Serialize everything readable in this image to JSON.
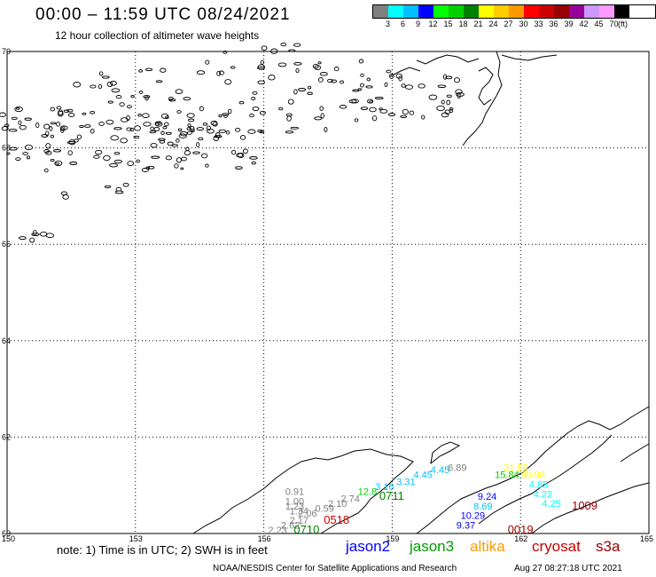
{
  "header": {
    "title": "00:00 – 11:59 UTC 08/24/2021",
    "subtitle": "12 hour collection of altimeter wave heights"
  },
  "legend": {
    "colors": [
      "#808080",
      "#00ffff",
      "#00bfff",
      "#0000ff",
      "#00ff00",
      "#00d000",
      "#008000",
      "#ffff00",
      "#ffcc00",
      "#ff9900",
      "#ff0000",
      "#cc0000",
      "#990000",
      "#990099",
      "#cc99ff",
      "#ff99ff",
      "#000000"
    ],
    "labels": [
      "3",
      "6",
      "9",
      "12",
      "15",
      "18",
      "21",
      "24",
      "27",
      "30",
      "33",
      "36",
      "39",
      "42",
      "45",
      "70",
      "(ft)"
    ]
  },
  "axes": {
    "lat_labels": [
      "70",
      "68",
      "66",
      "64",
      "62",
      "60"
    ],
    "lon_labels": [
      "150",
      "153",
      "156",
      "159",
      "162",
      "165"
    ]
  },
  "chart_data": {
    "type": "scatter",
    "xlabel": "",
    "ylabel": "",
    "xlim": [
      150,
      165
    ],
    "ylim": [
      60,
      70
    ],
    "grid": true,
    "pass_times": [
      {
        "label": "0710",
        "color": "#008000",
        "lon": 156.7,
        "lat": 60.0
      },
      {
        "label": "0518",
        "color": "#cc0000",
        "lon": 157.4,
        "lat": 60.2
      },
      {
        "label": "0711",
        "color": "#008000",
        "lon": 158.7,
        "lat": 60.7
      },
      {
        "label": "0019",
        "color": "#990000",
        "lon": 161.7,
        "lat": 60.0
      },
      {
        "label": "1009",
        "color": "#990000",
        "lon": 163.2,
        "lat": 60.5
      }
    ],
    "observations": [
      {
        "value": "0.91",
        "color": "#808080",
        "lon": 156.5,
        "lat": 60.8
      },
      {
        "value": "1.00",
        "color": "#808080",
        "lon": 156.5,
        "lat": 60.6
      },
      {
        "value": "1.23",
        "color": "#808080",
        "lon": 156.5,
        "lat": 60.5
      },
      {
        "value": "1.34",
        "color": "#808080",
        "lon": 156.6,
        "lat": 60.4
      },
      {
        "value": "2.06",
        "color": "#808080",
        "lon": 156.8,
        "lat": 60.35
      },
      {
        "value": "0.59",
        "color": "#808080",
        "lon": 157.2,
        "lat": 60.45
      },
      {
        "value": "2.10",
        "color": "#808080",
        "lon": 157.5,
        "lat": 60.55
      },
      {
        "value": "2.74",
        "color": "#808080",
        "lon": 157.8,
        "lat": 60.65
      },
      {
        "value": "2.23",
        "color": "#808080",
        "lon": 156.1,
        "lat": 60.0
      },
      {
        "value": "2.62",
        "color": "#808080",
        "lon": 156.4,
        "lat": 60.1
      },
      {
        "value": "2.17",
        "color": "#808080",
        "lon": 156.6,
        "lat": 60.2
      },
      {
        "value": "12.8",
        "color": "#00d000",
        "lon": 158.2,
        "lat": 60.8
      },
      {
        "value": "3.16",
        "color": "#00bfff",
        "lon": 158.6,
        "lat": 60.9
      },
      {
        "value": "3.31",
        "color": "#00bfff",
        "lon": 159.1,
        "lat": 61.0
      },
      {
        "value": "4.45",
        "color": "#00bfff",
        "lon": 159.5,
        "lat": 61.15
      },
      {
        "value": "4.45",
        "color": "#00bfff",
        "lon": 159.9,
        "lat": 61.25
      },
      {
        "value": "6.89",
        "color": "#808080",
        "lon": 160.3,
        "lat": 61.3
      },
      {
        "value": "21.86",
        "color": "#ffff00",
        "lon": 161.6,
        "lat": 61.3
      },
      {
        "value": "15.84",
        "color": "#00d000",
        "lon": 161.4,
        "lat": 61.15
      },
      {
        "value": "30.98",
        "color": "#ffff00",
        "lon": 162.0,
        "lat": 61.15
      },
      {
        "value": "4.85",
        "color": "#00ffff",
        "lon": 162.2,
        "lat": 60.95
      },
      {
        "value": "4.22",
        "color": "#00ffff",
        "lon": 162.3,
        "lat": 60.75
      },
      {
        "value": "4.25",
        "color": "#00ffff",
        "lon": 162.5,
        "lat": 60.55
      },
      {
        "value": "9.24",
        "color": "#0000ff",
        "lon": 161.0,
        "lat": 60.7
      },
      {
        "value": "8.69",
        "color": "#00bfff",
        "lon": 160.9,
        "lat": 60.5
      },
      {
        "value": "10.29",
        "color": "#0000ff",
        "lon": 160.6,
        "lat": 60.3
      },
      {
        "value": "9.37",
        "color": "#0000ff",
        "lon": 160.5,
        "lat": 60.1
      }
    ]
  },
  "footer": {
    "note": "note: 1) Time is in UTC; 2) SWH is in feet",
    "satellites": [
      {
        "name": "jason2",
        "color": "#0000ff"
      },
      {
        "name": "jason3",
        "color": "#00a000"
      },
      {
        "name": "altika",
        "color": "#ff9900"
      },
      {
        "name": "cryosat",
        "color": "#cc0000"
      },
      {
        "name": "s3a",
        "color": "#990000"
      }
    ],
    "credit": "NOAA/NESDIS Center for Satellite Applications and Research",
    "timestamp": "Aug 27 08:27:18 UTC 2021"
  }
}
